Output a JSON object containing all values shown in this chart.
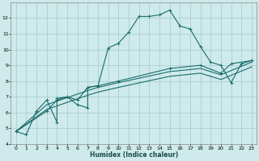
{
  "bg_color": "#ceeaea",
  "grid_color": "#aacfcf",
  "line_color": "#1a6b6b",
  "xlabel": "Humidex (Indice chaleur)",
  "xlim": [
    -0.5,
    23.5
  ],
  "ylim": [
    4,
    13
  ],
  "xticks": [
    0,
    1,
    2,
    3,
    4,
    5,
    6,
    7,
    8,
    9,
    10,
    11,
    12,
    13,
    14,
    15,
    16,
    17,
    18,
    19,
    20,
    21,
    22,
    23
  ],
  "yticks": [
    4,
    5,
    6,
    7,
    8,
    9,
    10,
    11,
    12
  ],
  "line1_x": [
    0,
    1,
    2,
    3,
    4,
    4,
    5,
    6,
    7,
    7,
    8,
    9,
    10,
    11,
    12,
    13,
    14,
    15,
    16,
    17,
    18,
    19,
    20,
    21,
    22,
    23
  ],
  "line1_y": [
    4.8,
    4.6,
    6.1,
    6.8,
    5.4,
    6.9,
    7.0,
    6.5,
    6.3,
    7.6,
    7.7,
    10.1,
    10.4,
    11.1,
    12.1,
    12.1,
    12.2,
    12.5,
    11.5,
    11.3,
    10.2,
    9.2,
    9.0,
    7.9,
    9.1,
    9.3
  ],
  "line2_x": [
    0,
    3,
    4,
    5,
    6,
    7,
    8,
    10,
    15,
    18,
    20,
    21,
    23
  ],
  "line2_y": [
    4.8,
    6.1,
    6.8,
    7.0,
    6.8,
    7.6,
    7.7,
    8.0,
    8.8,
    9.0,
    8.5,
    9.1,
    9.3
  ],
  "line3_x": [
    0,
    3,
    7,
    8,
    10,
    15,
    18,
    20,
    23
  ],
  "line3_y": [
    4.8,
    6.5,
    7.4,
    7.6,
    7.9,
    8.6,
    8.8,
    8.4,
    9.2
  ],
  "line4_x": [
    0,
    3,
    7,
    8,
    10,
    15,
    18,
    20,
    23
  ],
  "line4_y": [
    4.8,
    6.2,
    7.1,
    7.3,
    7.6,
    8.3,
    8.5,
    8.1,
    8.9
  ]
}
